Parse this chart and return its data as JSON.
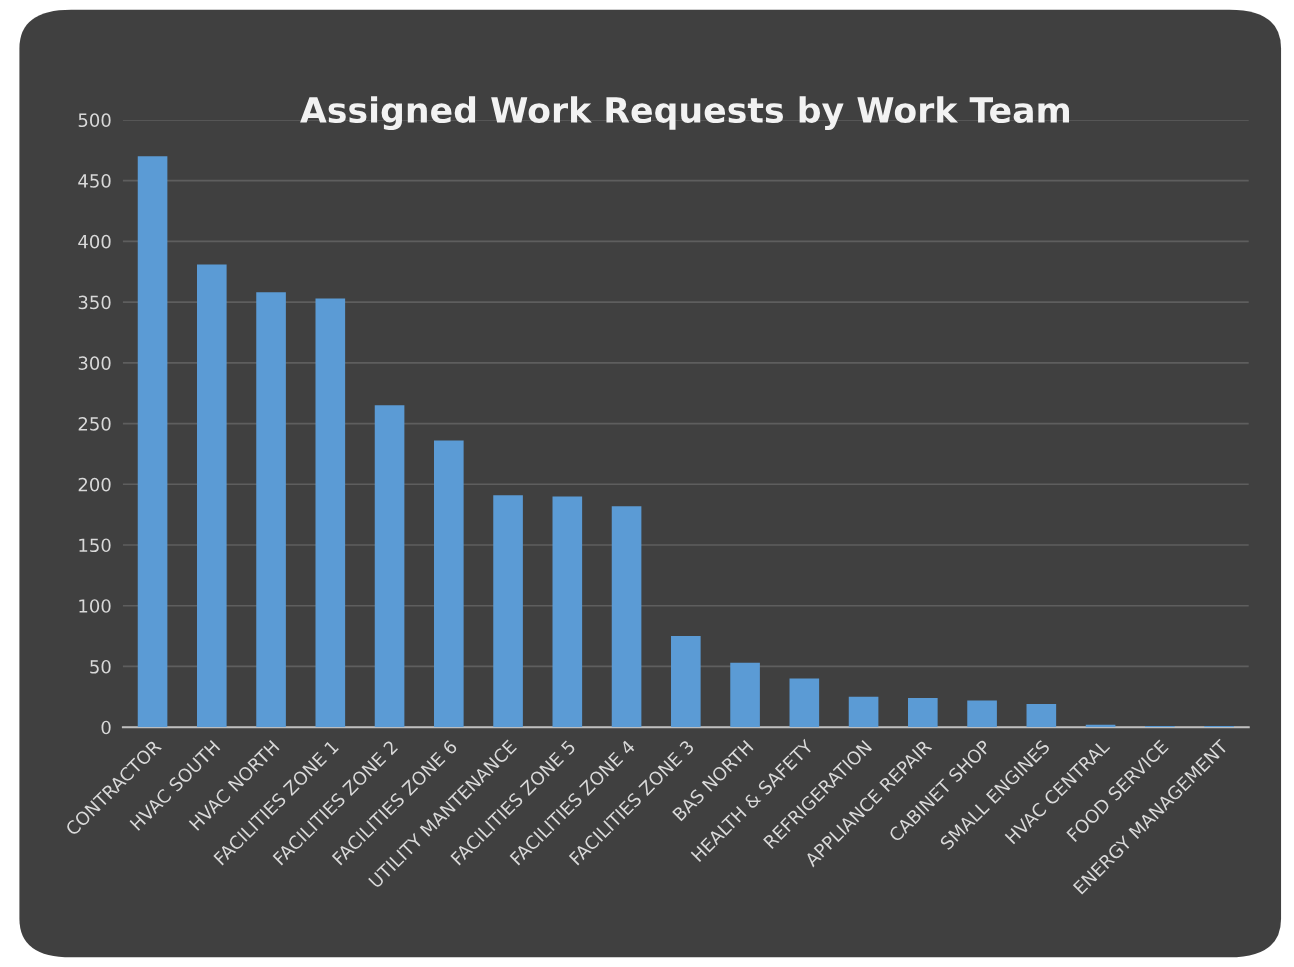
{
  "chart_data": {
    "type": "bar",
    "title": "Assigned Work Requests by Work Team",
    "categories": [
      "CONTRACTOR",
      "HVAC SOUTH",
      "HVAC NORTH",
      "FACILITIES ZONE 1",
      "FACILITIES ZONE 2",
      "FACILITIES ZONE 6",
      "UTILITY MANTENANCE",
      "FACILITIES ZONE 5",
      "FACILITIES ZONE 4",
      "FACILITIES ZONE 3",
      "BAS NORTH",
      "HEALTH & SAFETY",
      "REFRIGERATION",
      "APPLIANCE REPAIR",
      "CABINET SHOP",
      "SMALL ENGINES",
      "HVAC CENTRAL",
      "FOOD SERVICE",
      "ENERGY MANAGEMENT"
    ],
    "values": [
      470,
      381,
      358,
      353,
      265,
      236,
      191,
      190,
      182,
      75,
      53,
      40,
      25,
      24,
      22,
      19,
      2,
      1,
      1
    ],
    "color": "#5b9bd5",
    "ylim": [
      0,
      500
    ],
    "yticks": [
      0,
      50,
      100,
      150,
      200,
      250,
      300,
      350,
      400,
      450,
      500
    ],
    "grid": "y"
  }
}
